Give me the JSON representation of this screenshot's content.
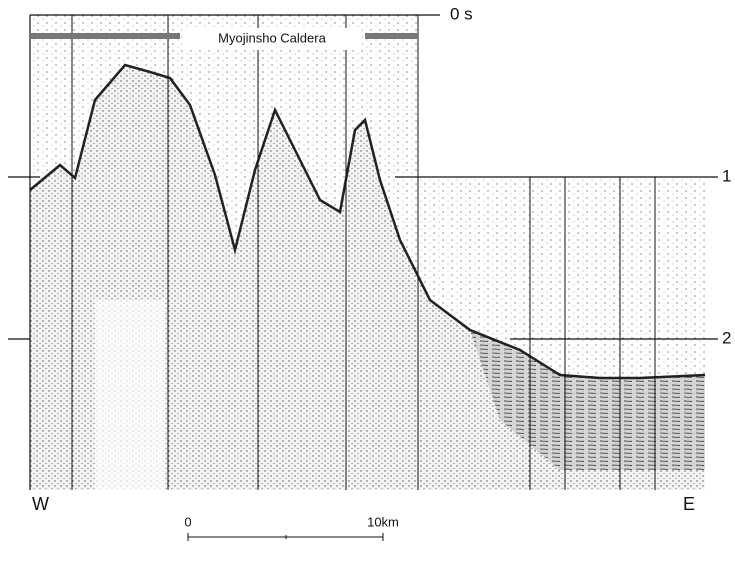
{
  "title": "Myojinsho Caldera",
  "time_axis": {
    "labels": [
      "0 s",
      "1",
      "2"
    ]
  },
  "directions": {
    "west": "W",
    "east": "E"
  },
  "scale_bar": {
    "start": "0",
    "end": "10km"
  }
}
